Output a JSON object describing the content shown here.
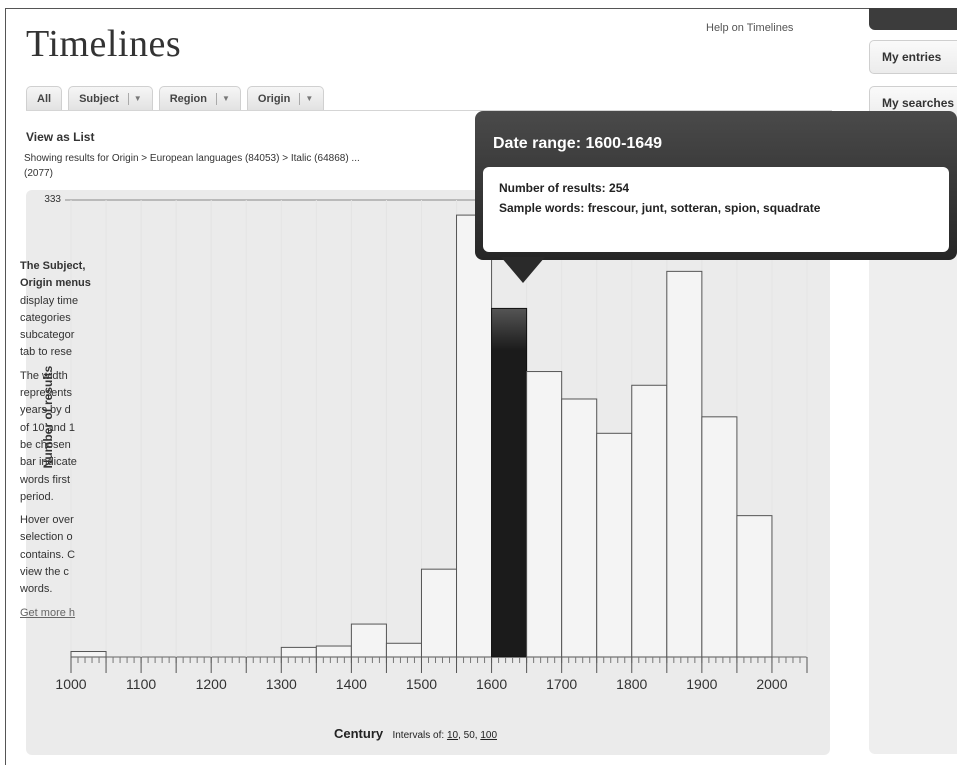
{
  "header": {
    "title": "Timelines",
    "help_link": "Help on Timelines"
  },
  "tabs": [
    {
      "label": "All",
      "has_menu": false
    },
    {
      "label": "Subject",
      "has_menu": true
    },
    {
      "label": "Region",
      "has_menu": true
    },
    {
      "label": "Origin",
      "has_menu": true
    }
  ],
  "view_as_list": "View as List",
  "breadcrumb": {
    "prefix": "Showing results for",
    "path": "Origin > European languages (84053) > Italic (64868) ...",
    "count_line": "(2077)"
  },
  "tooltip": {
    "title": "Date range: 1600-1649",
    "results_label": "Number of results: 254",
    "sample_label": "Sample words: frescour, junt, sotteran, spion, squadrate"
  },
  "sidebar": {
    "my_entries": "My entries",
    "my_searches": "My searches",
    "help_paragraphs": [
      [
        "The Subject,",
        "Origin menus",
        "display time",
        "categories",
        "subcategor",
        "tab to rese"
      ],
      [
        "The width",
        "represents",
        "years by d",
        "of 10 and 1",
        "be chosen",
        "bar indicate",
        "words first",
        "period."
      ],
      [
        "Hover over",
        "selection o",
        "contains. C",
        "view the c",
        "words."
      ]
    ],
    "more_link": "Get more h"
  },
  "chart_data": {
    "type": "bar",
    "title": "",
    "xlabel": "Century",
    "ylabel": "Number of results",
    "interval_label": "Intervals of:",
    "interval_options": [
      "10",
      "50",
      "100"
    ],
    "interval_selected": "50",
    "y_max_label": "333",
    "ylim": [
      0,
      333
    ],
    "xlim": [
      1000,
      2050
    ],
    "x_tick_labels": [
      "1000",
      "1100",
      "1200",
      "1300",
      "1400",
      "1500",
      "1600",
      "1700",
      "1800",
      "1900",
      "2000"
    ],
    "bins": [
      {
        "start": 1000,
        "end": 1050,
        "value": 4
      },
      {
        "start": 1050,
        "end": 1100,
        "value": 0
      },
      {
        "start": 1100,
        "end": 1150,
        "value": 0
      },
      {
        "start": 1150,
        "end": 1200,
        "value": 0
      },
      {
        "start": 1200,
        "end": 1250,
        "value": 0
      },
      {
        "start": 1250,
        "end": 1300,
        "value": 0
      },
      {
        "start": 1300,
        "end": 1350,
        "value": 7
      },
      {
        "start": 1350,
        "end": 1400,
        "value": 8
      },
      {
        "start": 1400,
        "end": 1450,
        "value": 24
      },
      {
        "start": 1450,
        "end": 1500,
        "value": 10
      },
      {
        "start": 1500,
        "end": 1550,
        "value": 64
      },
      {
        "start": 1550,
        "end": 1600,
        "value": 322
      },
      {
        "start": 1600,
        "end": 1650,
        "value": 254,
        "highlighted": true
      },
      {
        "start": 1650,
        "end": 1700,
        "value": 208
      },
      {
        "start": 1700,
        "end": 1750,
        "value": 188
      },
      {
        "start": 1750,
        "end": 1800,
        "value": 163
      },
      {
        "start": 1800,
        "end": 1850,
        "value": 198
      },
      {
        "start": 1850,
        "end": 1900,
        "value": 281
      },
      {
        "start": 1900,
        "end": 1950,
        "value": 175
      },
      {
        "start": 1950,
        "end": 2000,
        "value": 103
      },
      {
        "start": 2000,
        "end": 2050,
        "value": 0
      }
    ],
    "colors": {
      "bar": "#f4f4f4",
      "highlight": "#1b1b1b",
      "stroke": "#555555"
    }
  }
}
